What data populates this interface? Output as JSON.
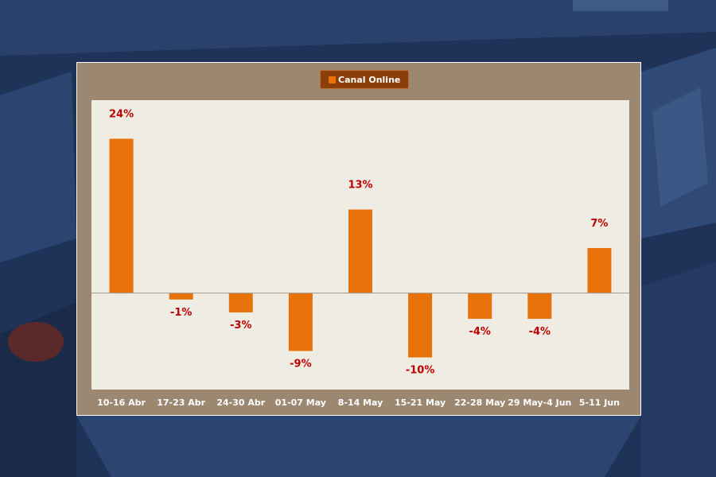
{
  "colors": {
    "background": "#1f3358",
    "frame": "#9c8770",
    "plot_area": "#efece3",
    "bar": "#e8710a",
    "legend_box": "#8b3e08",
    "data_label": "#c00000",
    "tick_label": "#ffffff",
    "zero_line": "#a09a90"
  },
  "legend": {
    "label": "Canal Online"
  },
  "chart_data": {
    "type": "bar",
    "categories": [
      "10-16 Abr",
      "17-23 Abr",
      "24-30 Abr",
      "01-07 May",
      "8-14 May",
      "15-21 May",
      "22-28 May",
      "29 May-4 Jun",
      "5-11 Jun"
    ],
    "series": [
      {
        "name": "Canal Online",
        "values": [
          24,
          -1,
          -3,
          -9,
          13,
          -10,
          -4,
          -4,
          7
        ]
      }
    ],
    "value_labels": [
      "24%",
      "-1%",
      "-3%",
      "-9%",
      "13%",
      "-10%",
      "-4%",
      "-4%",
      "7%"
    ],
    "ylim": [
      -15,
      30
    ],
    "grid": false,
    "legend_position": "top-center"
  }
}
